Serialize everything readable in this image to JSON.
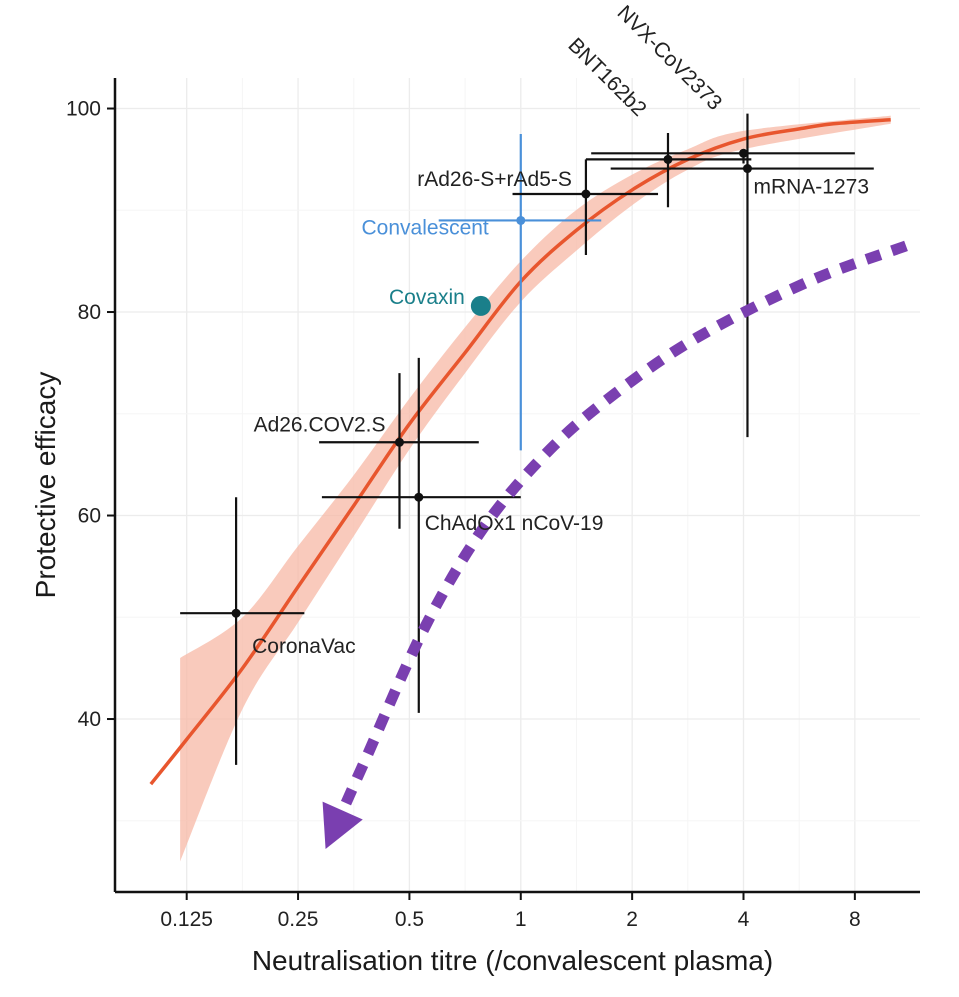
{
  "chart_data": {
    "type": "scatter",
    "title": "",
    "xlabel": "Neutralisation titre (/convalescent plasma)",
    "ylabel": "Protective efficacy",
    "x_scale": "log2",
    "xlim": [
      0.08,
      12
    ],
    "ylim": [
      23,
      103
    ],
    "x_ticks": [
      0.125,
      0.25,
      0.5,
      1,
      2,
      4,
      8
    ],
    "x_tick_labels": [
      "0.125",
      "0.25",
      "0.5",
      "1",
      "2",
      "4",
      "8"
    ],
    "y_ticks": [
      40,
      60,
      80,
      100
    ],
    "y_tick_labels": [
      "40",
      "60",
      "80",
      "100"
    ],
    "grid": true,
    "colors": {
      "fit_line": "#e8562e",
      "fit_band": "#f7b8a6",
      "points": "#111111",
      "convalescent": "#4a90d9",
      "covaxin": "#1a7f8a",
      "arrow": "#7a3fb0"
    },
    "vaccines": [
      {
        "name": "CoronaVac",
        "x": 0.17,
        "y": 50.4,
        "x_lo": 0.12,
        "x_hi": 0.26,
        "y_lo": 35.5,
        "y_hi": 61.8,
        "color": "#111111",
        "label_pos": "below-right"
      },
      {
        "name": "Ad26.COV2.S",
        "x": 0.47,
        "y": 67.2,
        "x_lo": 0.285,
        "x_hi": 0.77,
        "y_lo": 58.7,
        "y_hi": 74.0,
        "color": "#111111",
        "label_pos": "left"
      },
      {
        "name": "ChAdOx1 nCoV-19",
        "x": 0.53,
        "y": 61.8,
        "x_lo": 0.29,
        "x_hi": 1.0,
        "y_lo": 40.6,
        "y_hi": 75.5,
        "color": "#111111",
        "label_pos": "right"
      },
      {
        "name": "Convalescent",
        "x": 1.0,
        "y": 89.0,
        "x_lo": 0.6,
        "x_hi": 1.65,
        "y_lo": 66.4,
        "y_hi": 97.5,
        "color": "#4a90d9",
        "label_pos": "left"
      },
      {
        "name": "rAd26-S+rAd5-S",
        "x": 1.5,
        "y": 91.6,
        "x_lo": 0.95,
        "x_hi": 2.35,
        "y_lo": 85.6,
        "y_hi": 95.0,
        "color": "#111111",
        "label_pos": "left"
      },
      {
        "name": "BNT162b2",
        "x": 2.5,
        "y": 95.0,
        "x_lo": 1.5,
        "x_hi": 4.2,
        "y_lo": 90.3,
        "y_hi": 97.6,
        "color": "#111111",
        "label_pos": "rotated"
      },
      {
        "name": "NVX-CoV2373",
        "x": 4.0,
        "y": 95.6,
        "x_lo": 1.55,
        "x_hi": 8.0,
        "y_lo": 94.6,
        "y_hi": 96.0,
        "color": "#111111",
        "label_pos": "rotated"
      },
      {
        "name": "mRNA-1273",
        "x": 4.1,
        "y": 94.1,
        "x_lo": 1.75,
        "x_hi": 9.0,
        "y_lo": 67.7,
        "y_hi": 99.5,
        "color": "#111111",
        "label_pos": "right"
      }
    ],
    "covaxin": {
      "name": "Covaxin",
      "x": 0.78,
      "y": 80.6
    },
    "fit_line": [
      [
        0.1,
        33.6
      ],
      [
        0.125,
        38.0
      ],
      [
        0.177,
        45.0
      ],
      [
        0.25,
        53.0
      ],
      [
        0.354,
        61.0
      ],
      [
        0.5,
        69.0
      ],
      [
        0.707,
        76.0
      ],
      [
        1.0,
        83.0
      ],
      [
        1.41,
        88.0
      ],
      [
        2.0,
        92.0
      ],
      [
        2.83,
        95.0
      ],
      [
        4.0,
        97.0
      ],
      [
        5.66,
        98.0
      ],
      [
        7.0,
        98.5
      ],
      [
        10.0,
        98.9
      ]
    ],
    "fit_band_upper": [
      [
        0.12,
        46.0
      ],
      [
        0.177,
        50.0
      ],
      [
        0.25,
        57.0
      ],
      [
        0.354,
        64.0
      ],
      [
        0.5,
        71.5
      ],
      [
        0.707,
        78.5
      ],
      [
        1.0,
        85.0
      ],
      [
        1.41,
        90.0
      ],
      [
        2.0,
        93.5
      ],
      [
        2.83,
        96.0
      ],
      [
        4.0,
        97.8
      ],
      [
        10.0,
        99.3
      ]
    ],
    "fit_band_lower": [
      [
        10.0,
        98.5
      ],
      [
        4.0,
        96.0
      ],
      [
        2.83,
        94.0
      ],
      [
        2.0,
        90.5
      ],
      [
        1.41,
        86.0
      ],
      [
        1.0,
        81.0
      ],
      [
        0.707,
        74.0
      ],
      [
        0.5,
        66.5
      ],
      [
        0.354,
        58.0
      ],
      [
        0.25,
        49.5
      ],
      [
        0.177,
        41.0
      ],
      [
        0.12,
        26.0
      ]
    ],
    "annotation_arrow": {
      "style": "dashed",
      "points": [
        [
          11.0,
          86.5
        ],
        [
          6.0,
          83.0
        ],
        [
          3.0,
          77.5
        ],
        [
          1.8,
          72.0
        ],
        [
          1.2,
          66.5
        ],
        [
          0.8,
          59.0
        ],
        [
          0.55,
          49.0
        ],
        [
          0.38,
          36.0
        ],
        [
          0.33,
          31.0
        ]
      ]
    }
  }
}
